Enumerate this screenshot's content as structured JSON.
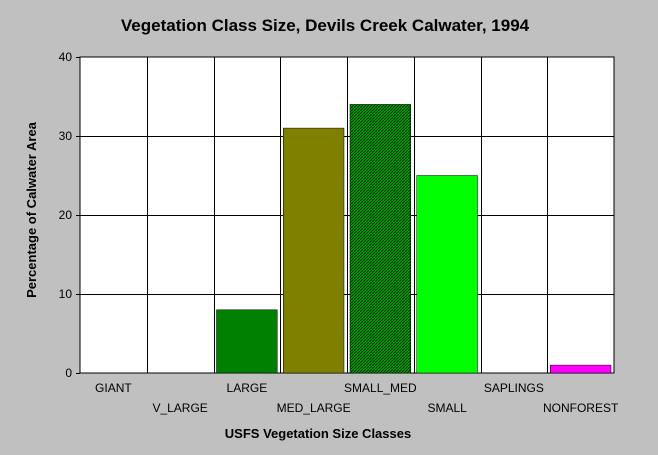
{
  "chart_data": {
    "type": "bar",
    "title": "Vegetation Class Size, Devils Creek Calwater, 1994",
    "xlabel": "USFS Vegetation Size Classes",
    "ylabel": "Percentage of Calwater Area",
    "ylim": [
      0,
      40
    ],
    "yticks": [
      "0",
      "10",
      "20",
      "30",
      "40"
    ],
    "grid": true,
    "categories": [
      "GIANT",
      "V_LARGE",
      "LARGE",
      "MED_LARGE",
      "SMALL_MED",
      "SMALL",
      "SAPLINGS",
      "NONFOREST"
    ],
    "values": [
      0,
      0,
      8,
      31,
      34,
      25,
      0,
      1
    ],
    "colors": [
      "#008000",
      "#008000",
      "#008000",
      "#808000",
      "#006400",
      "#00ff00",
      "#00ff00",
      "#ff00ff"
    ],
    "patterns": [
      "solid",
      "solid",
      "solid",
      "solid",
      "hatched",
      "solid",
      "solid",
      "solid"
    ]
  }
}
